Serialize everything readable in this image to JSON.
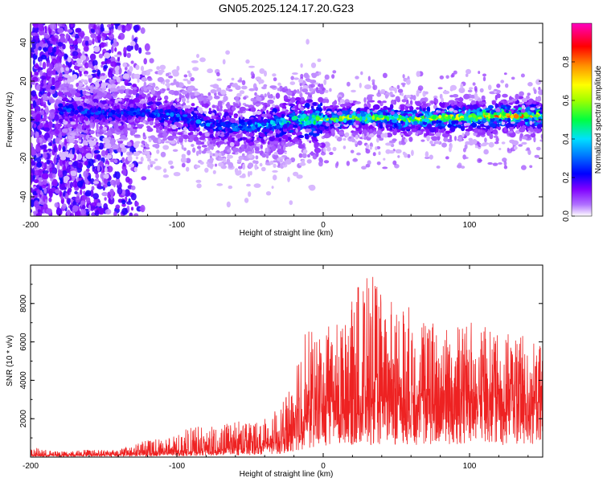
{
  "title": "GN05.2025.124.17.20.G23",
  "chart_data": [
    {
      "type": "heatmap",
      "title": "GN05.2025.124.17.20.G23",
      "xlabel": "Height of straight line (km)",
      "ylabel": "Frequency (Hz)",
      "xlim": [
        -200,
        150
      ],
      "ylim": [
        -50,
        50
      ],
      "xticks": [
        -200,
        -100,
        0,
        100
      ],
      "yticks": [
        -40,
        -20,
        0,
        20,
        40
      ],
      "colorbar": {
        "label": "Normalized spectral amplitude",
        "range": [
          0.0,
          1.0
        ],
        "ticks": [
          0.0,
          0.2,
          0.4,
          0.6,
          0.8
        ],
        "colormap": "rainbow (white - purple - blue - cyan - green - yellow - orange - red - magenta)",
        "colors": [
          "#ffffff",
          "#a000ff",
          "#0000ff",
          "#00e0ff",
          "#00ff00",
          "#ffff00",
          "#ff8000",
          "#ff0000",
          "#ff00c0"
        ]
      },
      "description_trace": {
        "x": [
          -200,
          -175,
          -150,
          -125,
          -100,
          -80,
          -60,
          -40,
          -20,
          0,
          20,
          40,
          60,
          80,
          100,
          120,
          150
        ],
        "center_frequency_hz": [
          8,
          5,
          3,
          4,
          2,
          -2,
          -4,
          -3,
          0,
          0,
          1,
          1,
          0,
          1,
          1,
          2,
          2
        ],
        "peak_amplitude": [
          0.25,
          0.3,
          0.3,
          0.3,
          0.35,
          0.35,
          0.35,
          0.4,
          0.5,
          0.6,
          0.65,
          0.7,
          0.7,
          0.75,
          0.8,
          0.85,
          0.8
        ]
      }
    },
    {
      "type": "line",
      "xlabel": "Height of straight line (km)",
      "ylabel": "SNR (10 * v/v)",
      "xlim": [
        -200,
        150
      ],
      "ylim": [
        0,
        10000
      ],
      "xticks": [
        -200,
        -100,
        0,
        100
      ],
      "yticks": [
        2000,
        4000,
        6000,
        8000
      ],
      "color": "#ee2222",
      "series": [
        {
          "x": [
            -200,
            -180,
            -160,
            -140,
            -120,
            -110,
            -100,
            -90,
            -80,
            -70,
            -60,
            -50,
            -40,
            -30,
            -25,
            -20,
            -15,
            -10,
            -5,
            0,
            10,
            20,
            25,
            30,
            40,
            50,
            60,
            70,
            80,
            90,
            100,
            110,
            120,
            130,
            140,
            150
          ],
          "envelope_max": [
            500,
            300,
            400,
            400,
            900,
            1000,
            1100,
            1700,
            1600,
            1600,
            2000,
            1900,
            2200,
            2500,
            3200,
            5000,
            6500,
            6800,
            6300,
            6700,
            7000,
            8200,
            9500,
            10000,
            8600,
            8000,
            8000,
            7300,
            7000,
            7100,
            7000,
            7300,
            6300,
            6500,
            6200,
            5800
          ],
          "baseline": [
            100,
            100,
            150,
            150,
            200,
            250,
            250,
            300,
            350,
            400,
            450,
            500,
            600,
            800,
            1000,
            1400,
            1900,
            2200,
            2400,
            2700,
            2800,
            3000,
            3000,
            3100,
            3200,
            3200,
            3100,
            3200,
            3100,
            3200,
            3100,
            3200,
            3100,
            3200,
            3000,
            3000
          ]
        }
      ]
    }
  ]
}
